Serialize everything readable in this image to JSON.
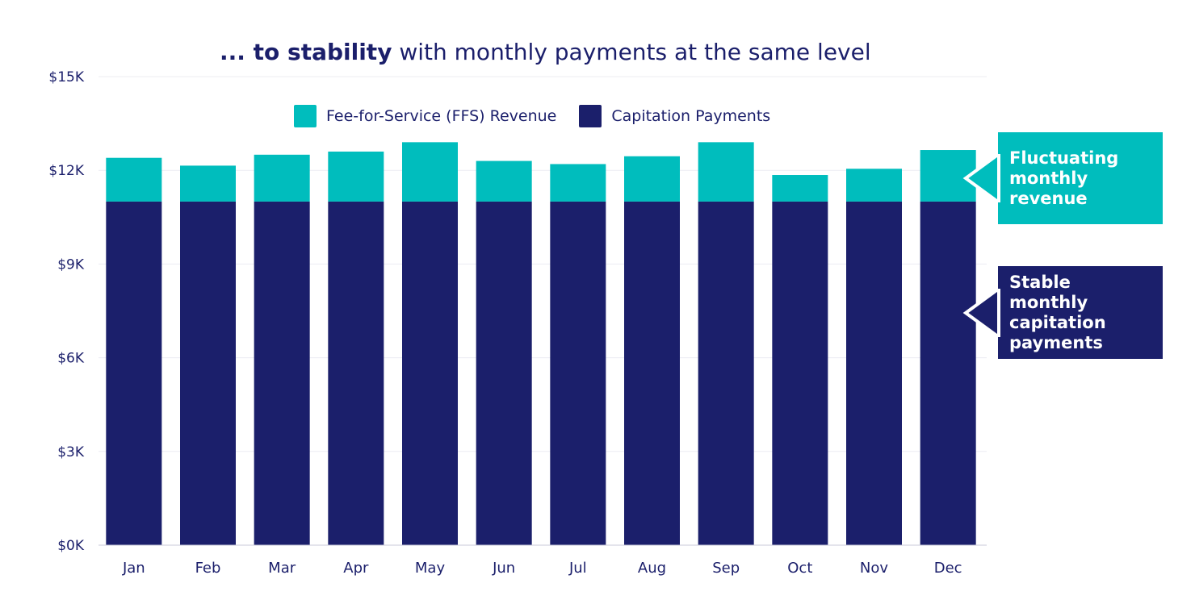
{
  "title": {
    "bold": "... to stability",
    "rest": " with monthly payments at the same level"
  },
  "colors": {
    "ffs": "#00bdbd",
    "capitation": "#1b1f6b",
    "text": "#1b1f6b",
    "grid": "#ececf2"
  },
  "legend": {
    "ffs_label": "Fee-for-Service (FFS) Revenue",
    "capitation_label": "Capitation Payments"
  },
  "callouts": {
    "fluctuating": "Fluctuating monthly revenue",
    "stable": "Stable monthly capitation payments"
  },
  "chart_data": {
    "type": "bar",
    "stacked": true,
    "categories": [
      "Jan",
      "Feb",
      "Mar",
      "Apr",
      "May",
      "Jun",
      "Jul",
      "Aug",
      "Sep",
      "Oct",
      "Nov",
      "Dec"
    ],
    "series": [
      {
        "name": "Capitation Payments",
        "values": [
          11000,
          11000,
          11000,
          11000,
          11000,
          11000,
          11000,
          11000,
          11000,
          11000,
          11000,
          11000
        ]
      },
      {
        "name": "Fee-for-Service (FFS) Revenue",
        "values": [
          1400,
          1150,
          1500,
          1600,
          1900,
          1300,
          1200,
          1450,
          1900,
          850,
          1050,
          1650
        ]
      }
    ],
    "y_ticks": [
      "$0K",
      "$3K",
      "$6K",
      "$9K",
      "$12K",
      "$15K"
    ],
    "y_tick_values": [
      0,
      3000,
      6000,
      9000,
      12000,
      15000
    ],
    "ylim": [
      0,
      15000
    ],
    "grid": true,
    "legend_position": "top"
  }
}
